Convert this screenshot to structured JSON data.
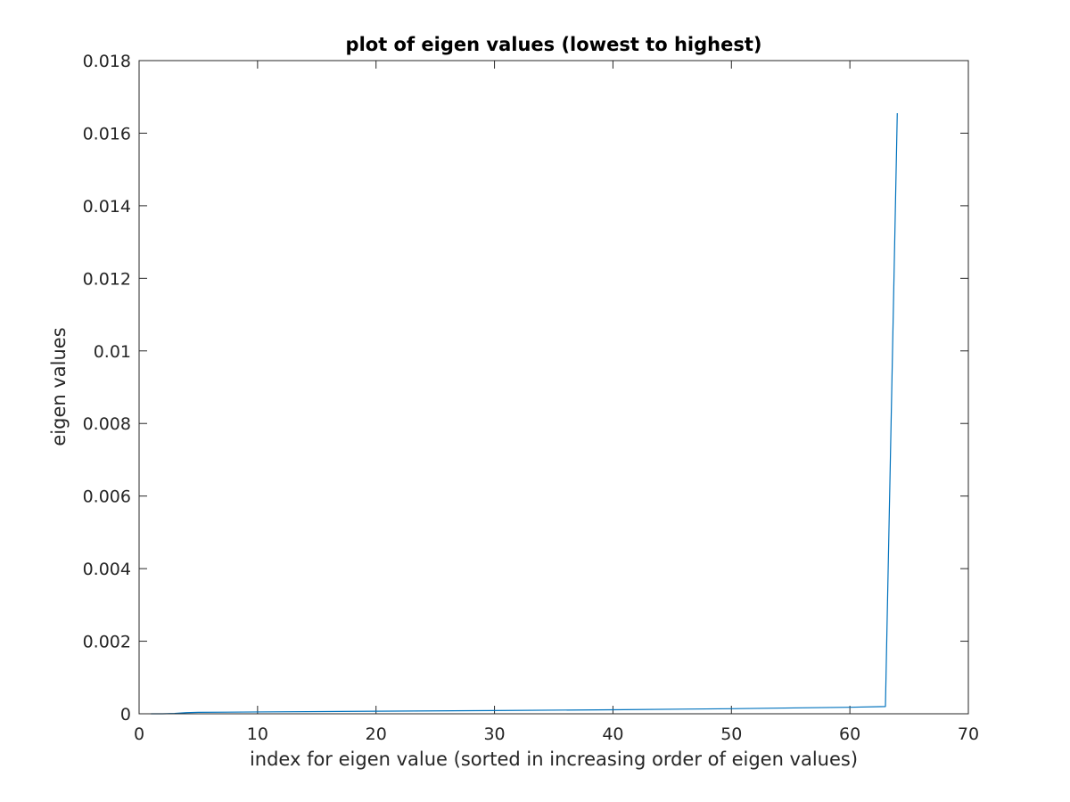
{
  "chart_data": {
    "type": "line",
    "title": "plot of eigen values (lowest to highest)",
    "xlabel": "index for eigen value (sorted in increasing order of eigen values)",
    "ylabel": "eigen values",
    "xlim": [
      0,
      70
    ],
    "ylim": [
      0,
      0.018
    ],
    "xticks": [
      "0",
      "10",
      "20",
      "30",
      "40",
      "50",
      "60",
      "70"
    ],
    "yticks": [
      "0",
      "0.002",
      "0.004",
      "0.006",
      "0.008",
      "0.01",
      "0.012",
      "0.014",
      "0.016",
      "0.018"
    ],
    "grid": false,
    "series": [
      {
        "color": "#0072BD",
        "x": [
          1,
          2,
          3,
          4,
          5,
          10,
          20,
          30,
          40,
          50,
          60,
          63,
          64
        ],
        "y": [
          0.0,
          0.0,
          1e-05,
          3e-05,
          4e-05,
          5e-05,
          7e-05,
          9e-05,
          0.00011,
          0.00014,
          0.00018,
          0.0002,
          0.01655
        ]
      }
    ]
  }
}
